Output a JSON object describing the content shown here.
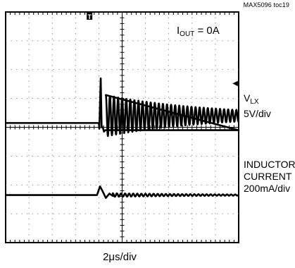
{
  "figure_tag": "MAX5096 toc19",
  "chart_data": {
    "type": "line",
    "annotation": {
      "prefix": "I",
      "sub": "OUT",
      "suffix": " = 0A"
    },
    "time_scale": "2μs/div",
    "grid": true,
    "channels": [
      {
        "id": "vlx",
        "label_main": "V",
        "label_sub": "LX",
        "label_scale": "5V/div",
        "ground_marker": "◀",
        "baseline_div": 0.15,
        "x_div": [
          0,
          4.0,
          4.02,
          4.08,
          4.12,
          4.17,
          4.22,
          4.28,
          10.0
        ],
        "y_div": [
          0.15,
          0.15,
          -0.05,
          1.7,
          0.0,
          0.0,
          -0.15,
          -0.1,
          -0.1
        ],
        "ringing": {
          "start_div": 4.3,
          "end_div": 10.0,
          "period_div": 0.175,
          "initial_amp_div": 0.72,
          "center_div": 0.4,
          "decay_per_div": 0.32,
          "final_amp_div": 0.2
        }
      },
      {
        "id": "inductor-current",
        "label_lines": [
          "INDUCTOR",
          "CURRENT",
          "200mA/div"
        ],
        "ground_marker": "◀",
        "baseline_div": -2.35,
        "x_div": [
          0,
          3.92,
          4.05,
          4.15,
          4.3,
          4.45,
          4.6
        ],
        "y_div": [
          -2.35,
          -2.35,
          -2.05,
          -2.2,
          -2.45,
          -2.3,
          -2.38
        ],
        "ringing": {
          "start_div": 4.6,
          "end_div": 10.0,
          "period_div": 0.175,
          "initial_amp_div": 0.06,
          "center_div": -2.35,
          "decay_per_div": 0.3,
          "final_amp_div": 0.02
        }
      }
    ],
    "trigger_marker": "T"
  }
}
